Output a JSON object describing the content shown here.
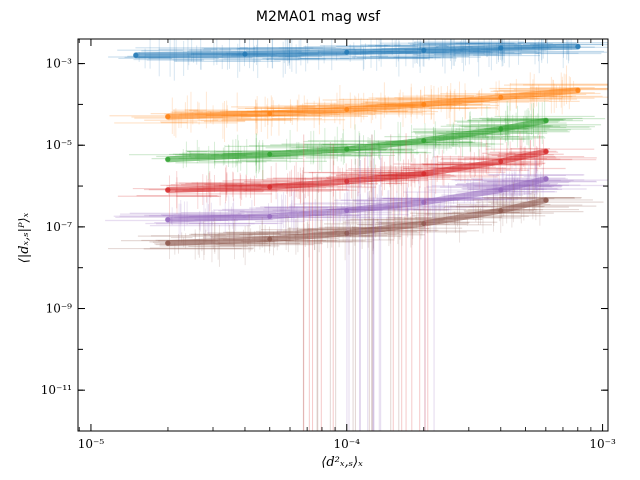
{
  "chart_data": {
    "type": "scatter",
    "title": "M2MA01 mag wsf",
    "xlabel": "⟨d²ₓ,ₛ⟩ₓ",
    "ylabel": "⟨|dₓ,ₛ|ᴾ⟩ₓ",
    "x_scale": "log",
    "y_scale": "log",
    "xlim": [
      8.9e-06,
      0.00105
    ],
    "ylim": [
      1e-12,
      0.004
    ],
    "x_ticks": [
      {
        "value": 1e-05,
        "label": "10⁻⁵"
      },
      {
        "value": 0.0001,
        "label": "10⁻⁴"
      },
      {
        "value": 0.001,
        "label": "10⁻³"
      }
    ],
    "y_ticks": [
      {
        "value": 0.001,
        "label": "10⁻³"
      },
      {
        "value": 1e-05,
        "label": "10⁻⁵"
      },
      {
        "value": 1e-07,
        "label": "10⁻⁷"
      },
      {
        "value": 1e-09,
        "label": "10⁻⁹"
      },
      {
        "value": 1e-11,
        "label": "10⁻¹¹"
      }
    ],
    "grid": false,
    "legend": "none",
    "series": [
      {
        "color": "#1f77b4",
        "x": [
          1.5e-05,
          4e-05,
          0.0001,
          0.0002,
          0.0004,
          0.0008
        ],
        "y": [
          0.0016,
          0.0017,
          0.0019,
          0.0021,
          0.0024,
          0.0026
        ]
      },
      {
        "color": "#ff7f0e",
        "x": [
          2e-05,
          5e-05,
          0.0001,
          0.0002,
          0.0004,
          0.0008
        ],
        "y": [
          5e-05,
          6e-05,
          7.5e-05,
          0.0001,
          0.00015,
          0.00022
        ]
      },
      {
        "color": "#2ca02c",
        "x": [
          2e-05,
          5e-05,
          0.0001,
          0.0002,
          0.0004,
          0.0006
        ],
        "y": [
          4.5e-06,
          6e-06,
          8e-06,
          1.3e-05,
          2.5e-05,
          4e-05
        ]
      },
      {
        "color": "#d62728",
        "x": [
          2e-05,
          5e-05,
          0.0001,
          0.0002,
          0.0004,
          0.0006
        ],
        "y": [
          8e-07,
          9.5e-07,
          1.3e-06,
          2e-06,
          4e-06,
          7e-06
        ]
      },
      {
        "color": "#9467bd",
        "x": [
          2e-05,
          5e-05,
          0.0001,
          0.0002,
          0.0004,
          0.0006
        ],
        "y": [
          1.5e-07,
          1.8e-07,
          2.5e-07,
          4e-07,
          8e-07,
          1.5e-06
        ]
      },
      {
        "color": "#8c564b",
        "x": [
          2e-05,
          5e-05,
          0.0001,
          0.0002,
          0.0004,
          0.0006
        ],
        "y": [
          4e-08,
          5e-08,
          7e-08,
          1.2e-07,
          2.5e-07,
          4.5e-07
        ]
      }
    ]
  }
}
